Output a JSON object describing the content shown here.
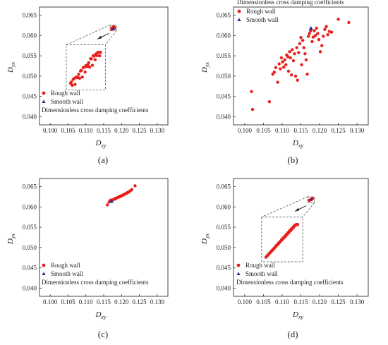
{
  "colors": {
    "rough": "#e8201c",
    "smooth": "#1b2f9e",
    "axis": "#333333",
    "inset": "#555555"
  },
  "chart_data": [
    {
      "type": "scatter",
      "panel_label": "(a)",
      "xlabel": "D",
      "xlabel_sub": "xy",
      "ylabel": "D",
      "ylabel_sub": "yx",
      "xlim": [
        0.097,
        0.133
      ],
      "ylim": [
        0.038,
        0.067
      ],
      "x_ticks": [
        "0.100",
        "0.105",
        "0.110",
        "0.115",
        "0.120",
        "0.125",
        "0.130"
      ],
      "y_ticks": [
        "0.040",
        "0.045",
        "0.050",
        "0.055",
        "0.060",
        "0.065"
      ],
      "legend": {
        "position": "bottom-left",
        "title": "Dimensionless cross damping coefficients",
        "entries": [
          "Rough wall",
          "Smooth wall"
        ]
      },
      "inset": {
        "type": "zoom",
        "source_region": {
          "x": [
            0.1168,
            0.1186
          ],
          "y": [
            0.0612,
            0.0626
          ]
        },
        "display_box": {
          "x": [
            0.1045,
            0.1155
          ],
          "y": [
            0.0466,
            0.0577
          ]
        }
      },
      "series": [
        {
          "name": "Rough wall",
          "marker": "circle",
          "color": "#e8201c",
          "x": [
            0.1172,
            0.1175,
            0.1178,
            0.118,
            0.1176,
            0.1179,
            0.1174,
            0.1181,
            0.1177,
            0.1173
          ],
          "y": [
            0.0615,
            0.0618,
            0.062,
            0.0617,
            0.0619,
            0.0621,
            0.0616,
            0.0619,
            0.0622,
            0.0618
          ]
        },
        {
          "name": "Smooth wall",
          "marker": "triangle",
          "color": "#1b2f9e",
          "x": [
            0.1177
          ],
          "y": [
            0.0618
          ]
        }
      ]
    },
    {
      "type": "scatter",
      "panel_label": "(b)",
      "xlabel": "D",
      "xlabel_sub": "xy",
      "ylabel": "D",
      "ylabel_sub": "yx",
      "xlim": [
        0.097,
        0.133
      ],
      "ylim": [
        0.038,
        0.067
      ],
      "x_ticks": [
        "0.100",
        "0.105",
        "0.110",
        "0.115",
        "0.120",
        "0.125",
        "0.130"
      ],
      "y_ticks": [
        "0.040",
        "0.045",
        "0.050",
        "0.055",
        "0.060",
        "0.065"
      ],
      "legend": {
        "position": "top-left",
        "title": "Dimensionless cross damping coefficients",
        "entries": [
          "Rough wall",
          "Smooth wall"
        ]
      },
      "series": [
        {
          "name": "Rough wall",
          "marker": "circle",
          "color": "#e8201c",
          "x": [
            0.1018,
            0.1021,
            0.1066,
            0.1075,
            0.1079,
            0.1083,
            0.1088,
            0.1092,
            0.1095,
            0.1098,
            0.1101,
            0.1104,
            0.1107,
            0.111,
            0.1112,
            0.1115,
            0.1117,
            0.112,
            0.1122,
            0.1125,
            0.1127,
            0.113,
            0.1133,
            0.1136,
            0.1139,
            0.1141,
            0.1144,
            0.1147,
            0.115,
            0.1152,
            0.1155,
            0.1158,
            0.1161,
            0.1164,
            0.1167,
            0.117,
            0.1173,
            0.1176,
            0.118,
            0.1183,
            0.1186,
            0.1189,
            0.1192,
            0.1195,
            0.1198,
            0.1202,
            0.1206,
            0.121,
            0.1214,
            0.1218,
            0.1222,
            0.1226,
            0.1232,
            0.125,
            0.1278
          ],
          "y": [
            0.0462,
            0.0418,
            0.0437,
            0.0505,
            0.051,
            0.0521,
            0.0485,
            0.053,
            0.0518,
            0.0545,
            0.0535,
            0.0522,
            0.054,
            0.0528,
            0.0552,
            0.0548,
            0.0512,
            0.056,
            0.0545,
            0.0503,
            0.0565,
            0.0538,
            0.0555,
            0.05,
            0.057,
            0.049,
            0.0558,
            0.058,
            0.0595,
            0.0528,
            0.0588,
            0.057,
            0.0555,
            0.054,
            0.0505,
            0.0598,
            0.0605,
            0.0612,
            0.0585,
            0.0596,
            0.0612,
            0.06,
            0.0618,
            0.0605,
            0.059,
            0.056,
            0.0575,
            0.0598,
            0.0615,
            0.0622,
            0.0602,
            0.061,
            0.0608,
            0.064,
            0.0632
          ]
        },
        {
          "name": "Smooth wall",
          "marker": "triangle",
          "color": "#1b2f9e",
          "x": [
            0.1177
          ],
          "y": [
            0.0618
          ]
        }
      ]
    },
    {
      "type": "scatter",
      "panel_label": "(c)",
      "xlabel": "D",
      "xlabel_sub": "xy",
      "ylabel": "D",
      "ylabel_sub": "yx",
      "xlim": [
        0.097,
        0.133
      ],
      "ylim": [
        0.038,
        0.067
      ],
      "x_ticks": [
        "0.100",
        "0.105",
        "0.110",
        "0.115",
        "0.120",
        "0.125",
        "0.130"
      ],
      "y_ticks": [
        "0.040",
        "0.045",
        "0.050",
        "0.055",
        "0.060",
        "0.065"
      ],
      "legend": {
        "position": "bottom-left",
        "title": "Dimensionless cross damping coefficients",
        "entries": [
          "Rough wall",
          "Smooth wall"
        ]
      },
      "series": [
        {
          "name": "Rough wall",
          "marker": "circle",
          "color": "#e8201c",
          "x": [
            0.116,
            0.1165,
            0.1168,
            0.1171,
            0.1174,
            0.1177,
            0.118,
            0.1183,
            0.1186,
            0.1189,
            0.1192,
            0.1195,
            0.1198,
            0.1201,
            0.1204,
            0.1207,
            0.121,
            0.1213,
            0.1216,
            0.1219,
            0.1222,
            0.1225,
            0.1229,
            0.1238,
            0.117,
            0.1182,
            0.1194,
            0.1206,
            0.1218
          ],
          "y": [
            0.0605,
            0.0612,
            0.0615,
            0.0614,
            0.0617,
            0.0618,
            0.0619,
            0.062,
            0.0622,
            0.0623,
            0.0624,
            0.0625,
            0.0627,
            0.0628,
            0.0629,
            0.0631,
            0.0632,
            0.0633,
            0.0635,
            0.0636,
            0.0638,
            0.064,
            0.0643,
            0.0652,
            0.0617,
            0.0621,
            0.0626,
            0.063,
            0.0636
          ]
        },
        {
          "name": "Smooth wall",
          "marker": "triangle",
          "color": "#1b2f9e",
          "x": [
            0.1172
          ],
          "y": [
            0.0614
          ]
        }
      ]
    },
    {
      "type": "scatter",
      "panel_label": "(d)",
      "xlabel": "D",
      "xlabel_sub": "xy",
      "ylabel": "D",
      "ylabel_sub": "yx",
      "xlim": [
        0.097,
        0.133
      ],
      "ylim": [
        0.038,
        0.067
      ],
      "x_ticks": [
        "0.100",
        "0.105",
        "0.110",
        "0.115",
        "0.120",
        "0.125",
        "0.130"
      ],
      "y_ticks": [
        "0.040",
        "0.045",
        "0.050",
        "0.055",
        "0.060",
        "0.065"
      ],
      "legend": {
        "position": "bottom-left",
        "title": "Dimensionless cross damping coefficients",
        "entries": [
          "Rough wall",
          "Smooth wall"
        ]
      },
      "inset": {
        "type": "zoom",
        "source_region": {
          "x": [
            0.1168,
            0.1186
          ],
          "y": [
            0.061,
            0.0625
          ]
        },
        "display_box": {
          "x": [
            0.1045,
            0.1155
          ],
          "y": [
            0.0465,
            0.0575
          ]
        }
      },
      "series": [
        {
          "name": "Rough wall",
          "marker": "circle",
          "color": "#e8201c",
          "x": [
            0.1172,
            0.1174,
            0.1176,
            0.1178,
            0.118,
            0.1182,
            0.1175,
            0.1179,
            0.1177,
            0.1173
          ],
          "y": [
            0.0616,
            0.0617,
            0.0618,
            0.0619,
            0.062,
            0.0621,
            0.0617,
            0.0619,
            0.0618,
            0.0616
          ]
        },
        {
          "name": "Smooth wall",
          "marker": "triangle",
          "color": "#1b2f9e",
          "x": [
            0.1178
          ],
          "y": [
            0.0619
          ]
        }
      ]
    }
  ]
}
